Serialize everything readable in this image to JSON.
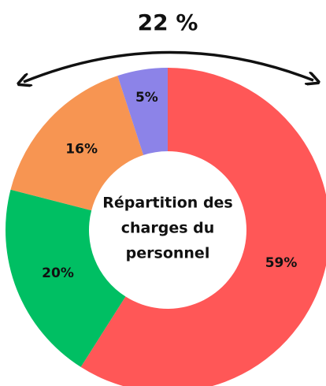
{
  "chart_data": {
    "type": "donut",
    "annotation": "22 %",
    "center_label": [
      "Répartition des",
      "charges du",
      "personnel"
    ],
    "categories": [
      null,
      null,
      null,
      null
    ],
    "values": [
      59,
      20,
      16,
      5
    ],
    "value_labels": [
      "59%",
      "20%",
      "16%",
      "5%"
    ],
    "colors": [
      "#ff5757",
      "#00bf63",
      "#f79552",
      "#8c83e8"
    ]
  }
}
